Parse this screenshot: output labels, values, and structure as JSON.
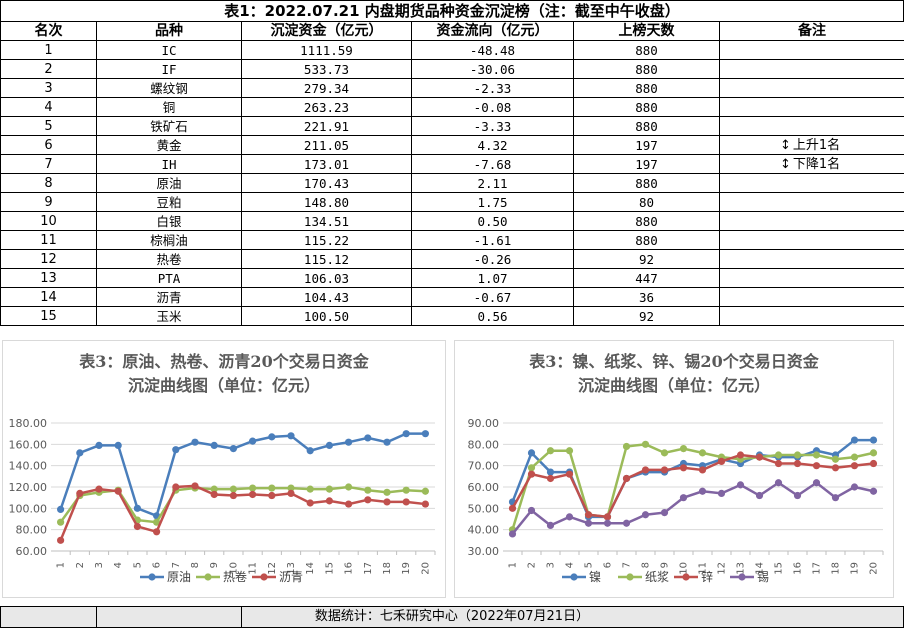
{
  "title": "表1：2022.07.21 内盘期货品种资金沉淀榜（注：截至中午收盘）",
  "table": {
    "headers": [
      "名次",
      "品种",
      "沉淀资金（亿元）",
      "资金流向（亿元）",
      "上榜天数",
      "备注"
    ],
    "rows": [
      {
        "rank": "1",
        "name": "IC",
        "fund": "1111.59",
        "flow": "-48.48",
        "days": "880",
        "note": ""
      },
      {
        "rank": "2",
        "name": "IF",
        "fund": "533.73",
        "flow": "-30.06",
        "days": "880",
        "note": ""
      },
      {
        "rank": "3",
        "name": "螺纹钢",
        "fund": "279.34",
        "flow": "-2.33",
        "days": "880",
        "note": ""
      },
      {
        "rank": "4",
        "name": "铜",
        "fund": "263.23",
        "flow": "-0.08",
        "days": "880",
        "note": ""
      },
      {
        "rank": "5",
        "name": "铁矿石",
        "fund": "221.91",
        "flow": "-3.33",
        "days": "880",
        "note": ""
      },
      {
        "rank": "6",
        "name": "黄金",
        "fund": "211.05",
        "flow": "4.32",
        "days": "197",
        "note": "上升1名"
      },
      {
        "rank": "7",
        "name": "IH",
        "fund": "173.01",
        "flow": "-7.68",
        "days": "197",
        "note": "下降1名"
      },
      {
        "rank": "8",
        "name": "原油",
        "fund": "170.43",
        "flow": "2.11",
        "days": "880",
        "note": ""
      },
      {
        "rank": "9",
        "name": "豆粕",
        "fund": "148.80",
        "flow": "1.75",
        "days": "80",
        "note": ""
      },
      {
        "rank": "10",
        "name": "白银",
        "fund": "134.51",
        "flow": "0.50",
        "days": "880",
        "note": ""
      },
      {
        "rank": "11",
        "name": "棕榈油",
        "fund": "115.22",
        "flow": "-1.61",
        "days": "880",
        "note": ""
      },
      {
        "rank": "12",
        "name": "热卷",
        "fund": "115.12",
        "flow": "-0.26",
        "days": "92",
        "note": ""
      },
      {
        "rank": "13",
        "name": "PTA",
        "fund": "106.03",
        "flow": "1.07",
        "days": "447",
        "note": ""
      },
      {
        "rank": "14",
        "name": "沥青",
        "fund": "104.43",
        "flow": "-0.67",
        "days": "36",
        "note": ""
      },
      {
        "rank": "15",
        "name": "玉米",
        "fund": "100.50",
        "flow": "0.56",
        "days": "92",
        "note": ""
      }
    ]
  },
  "chart_data": [
    {
      "type": "line",
      "title_line1": "表3：原油、热卷、沥青20个交易日资金",
      "title_line2": "沉淀曲线图（单位：亿元）",
      "x": [
        "1",
        "2",
        "3",
        "4",
        "5",
        "6",
        "7",
        "8",
        "9",
        "10",
        "11",
        "12",
        "13",
        "14",
        "15",
        "16",
        "17",
        "18",
        "19",
        "20"
      ],
      "y_ticks": [
        "60.00",
        "80.00",
        "100.00",
        "120.00",
        "140.00",
        "160.00",
        "180.00"
      ],
      "ylim": [
        60,
        180
      ],
      "legend_position": "bottom",
      "series": [
        {
          "name": "原油",
          "color": "#4a7ebb",
          "values": [
            99,
            152,
            159,
            159,
            100,
            93,
            155,
            162,
            159,
            156,
            163,
            167,
            168,
            154,
            159,
            162,
            166,
            162,
            170,
            170
          ]
        },
        {
          "name": "热卷",
          "color": "#9bbb59",
          "values": [
            87,
            112,
            115,
            117,
            89,
            87,
            117,
            119,
            118,
            118,
            119,
            119,
            119,
            118,
            118,
            120,
            117,
            115,
            117,
            116
          ]
        },
        {
          "name": "沥青",
          "color": "#c0504d",
          "values": [
            70,
            114,
            118,
            116,
            83,
            78,
            120,
            121,
            113,
            112,
            113,
            112,
            114,
            105,
            107,
            104,
            108,
            106,
            106,
            104
          ]
        }
      ]
    },
    {
      "type": "line",
      "title_line1": "表3：镍、纸浆、锌、锡20个交易日资金",
      "title_line2": "沉淀曲线图（单位：亿元）",
      "x": [
        "1",
        "2",
        "3",
        "4",
        "5",
        "6",
        "7",
        "8",
        "9",
        "10",
        "11",
        "12",
        "13",
        "14",
        "15",
        "16",
        "17",
        "18",
        "19",
        "20"
      ],
      "y_ticks": [
        "30.00",
        "40.00",
        "50.00",
        "60.00",
        "70.00",
        "80.00",
        "90.00"
      ],
      "ylim": [
        30,
        90
      ],
      "legend_position": "bottom",
      "series": [
        {
          "name": "镍",
          "color": "#4a7ebb",
          "values": [
            53,
            76,
            67,
            67,
            46,
            46,
            64,
            67,
            67,
            71,
            70,
            73,
            71,
            75,
            74,
            74,
            77,
            75,
            82,
            82
          ]
        },
        {
          "name": "纸浆",
          "color": "#9bbb59",
          "values": [
            40,
            69,
            77,
            77,
            47,
            46,
            79,
            80,
            76,
            78,
            76,
            74,
            73,
            74,
            75,
            75,
            75,
            73,
            74,
            76
          ]
        },
        {
          "name": "锌",
          "color": "#c0504d",
          "values": [
            50,
            66,
            64,
            66,
            47,
            46,
            64,
            68,
            68,
            69,
            68,
            72,
            75,
            74,
            71,
            71,
            70,
            69,
            70,
            71
          ]
        },
        {
          "name": "锡",
          "color": "#8064a2",
          "values": [
            38,
            49,
            42,
            46,
            43,
            43,
            43,
            47,
            48,
            55,
            58,
            57,
            61,
            56,
            62,
            56,
            62,
            55,
            60,
            58
          ]
        }
      ]
    }
  ],
  "footer": "数据统计：七禾研究中心（2022年07月21日）"
}
